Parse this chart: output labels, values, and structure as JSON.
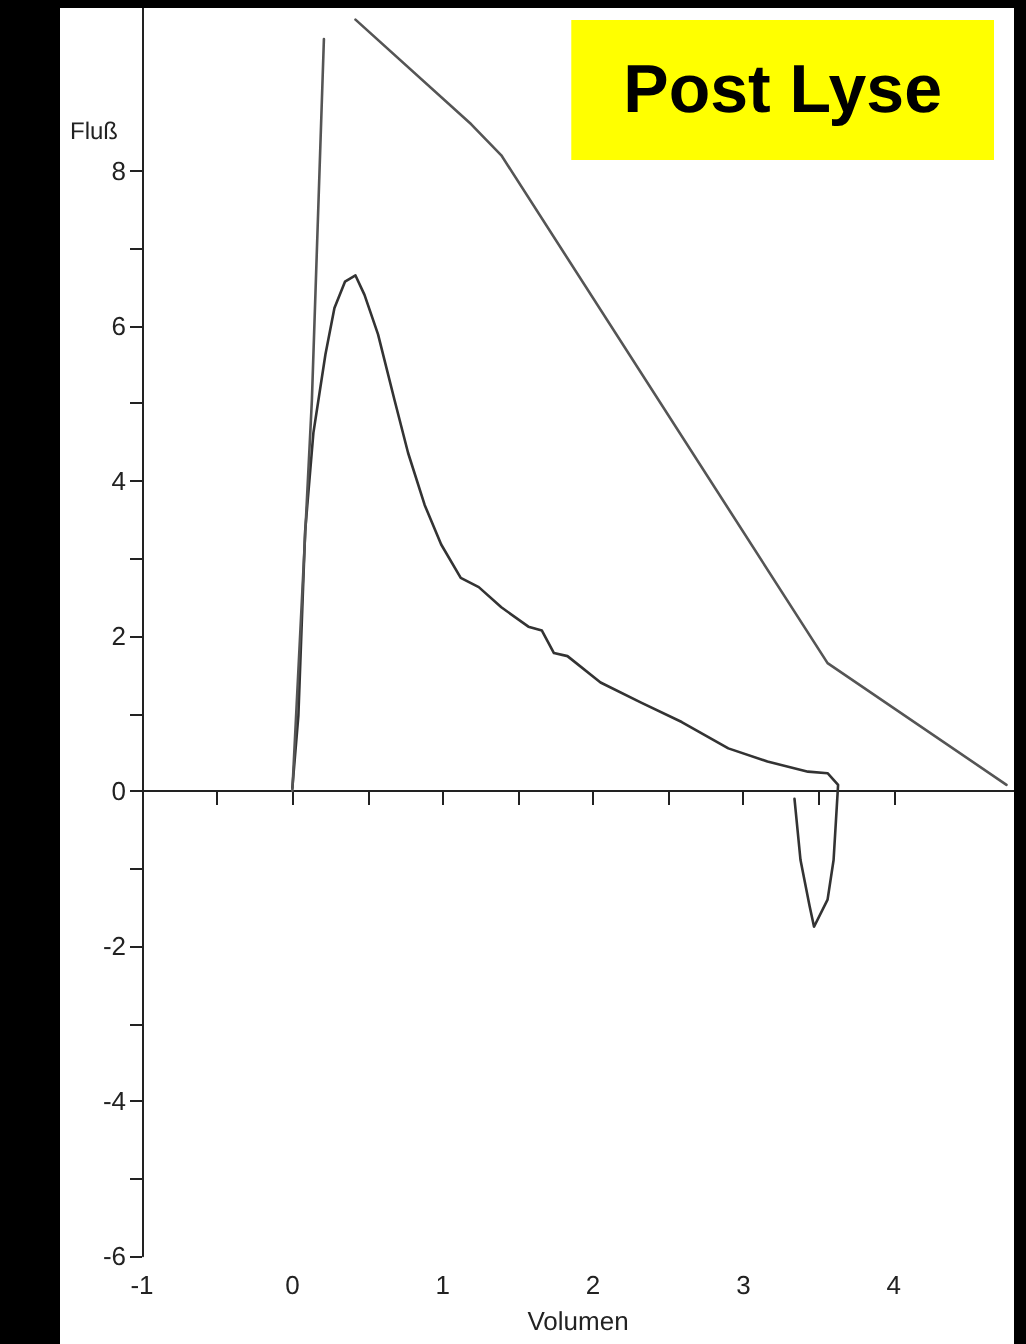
{
  "chart_data": {
    "type": "line",
    "title": "Post Lyse",
    "xlabel": "Volumen",
    "ylabel": "Fluß",
    "xlim": [
      -1,
      4.8
    ],
    "ylim": [
      -6,
      10.1
    ],
    "xticks": [
      -1,
      {
        "value": -0.5,
        "label": null
      },
      0,
      {
        "value": 0.5,
        "label": null
      },
      1,
      {
        "value": 1.5,
        "label": null
      },
      2,
      {
        "value": 2.5,
        "label": null
      },
      3,
      {
        "value": 3.5,
        "label": null
      },
      4
    ],
    "yticks": [
      -6,
      {
        "value": -5,
        "label": null
      },
      -4,
      {
        "value": -3,
        "label": null
      },
      -2,
      {
        "value": -1,
        "label": null
      },
      0,
      {
        "value": 1,
        "label": null
      },
      2,
      {
        "value": 3,
        "label": null
      },
      4,
      {
        "value": 5,
        "label": null
      },
      6,
      {
        "value": 7,
        "label": null
      },
      8
    ],
    "marker": "none",
    "line_style": "solid",
    "series": [
      {
        "color": "#333333",
        "x": [
          0,
          0.04,
          0.085,
          0.14,
          0.22,
          0.28,
          0.35,
          0.42,
          0.48,
          0.57,
          0.68,
          0.77,
          0.88,
          0.99,
          1.12,
          1.24,
          1.39,
          1.57,
          1.66,
          1.74,
          1.83,
          2.05,
          2.32,
          2.59,
          2.9,
          3.16,
          3.43,
          3.56,
          3.63,
          3.6,
          3.56,
          3.47,
          3.44,
          3.38,
          3.34
        ],
        "values": [
          0.04,
          0.97,
          3.35,
          4.62,
          5.63,
          6.23,
          6.57,
          6.65,
          6.4,
          5.89,
          5.04,
          4.36,
          3.69,
          3.18,
          2.75,
          2.63,
          2.37,
          2.12,
          2.07,
          1.78,
          1.74,
          1.4,
          1.14,
          0.89,
          0.55,
          0.38,
          0.25,
          0.23,
          0.08,
          -0.89,
          -1.4,
          -1.75,
          -1.48,
          -0.89,
          -0.1
        ]
      },
      {
        "color": "#555555",
        "x": [
          0,
          0.13,
          0.21,
          0.3,
          0.42,
          1.19,
          1.39,
          3.56,
          4.75
        ],
        "values": [
          0,
          5.04,
          9.7,
          null,
          9.95,
          8.6,
          8.2,
          1.65,
          0.08
        ]
      }
    ]
  }
}
